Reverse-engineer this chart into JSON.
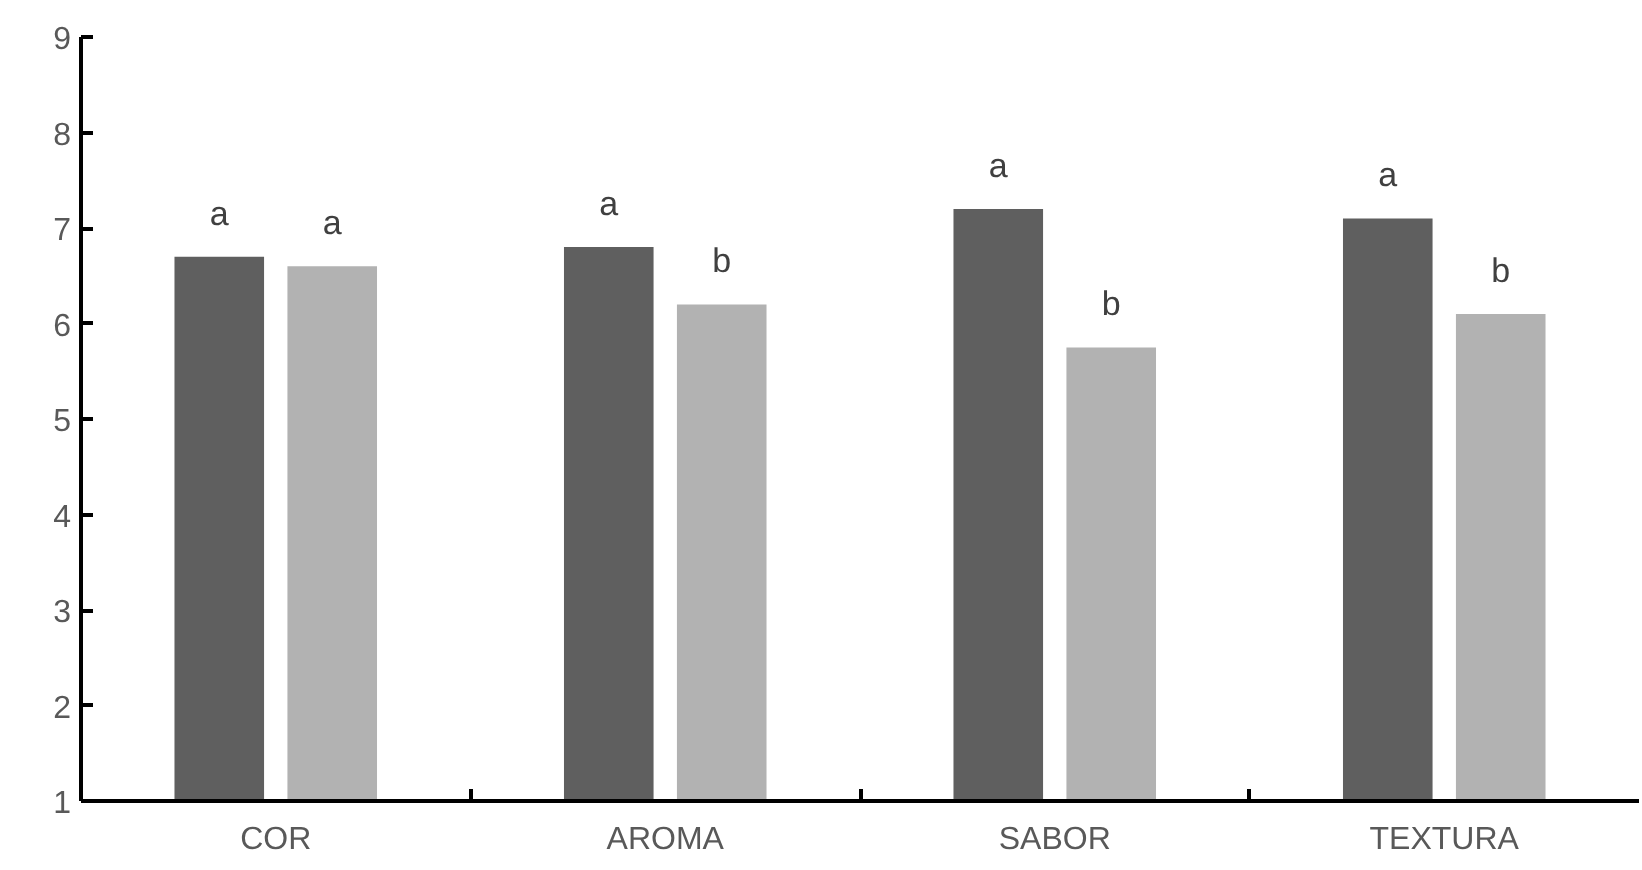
{
  "chart_data": {
    "type": "bar",
    "categories": [
      "COR",
      "AROMA",
      "SABOR",
      "TEXTURA"
    ],
    "series": [
      {
        "color": "#5f5f5f",
        "values": [
          6.7,
          6.8,
          7.2,
          7.1
        ]
      },
      {
        "color": "#b2b2b2",
        "values": [
          6.6,
          6.2,
          5.75,
          6.1
        ]
      }
    ],
    "ylim": [
      1,
      9
    ],
    "yticks": [
      1,
      2,
      3,
      4,
      5,
      6,
      7,
      8,
      9
    ],
    "grid": false,
    "annotations": [
      "a",
      "a",
      "a",
      "b",
      "a",
      "b",
      "a",
      "b"
    ]
  }
}
